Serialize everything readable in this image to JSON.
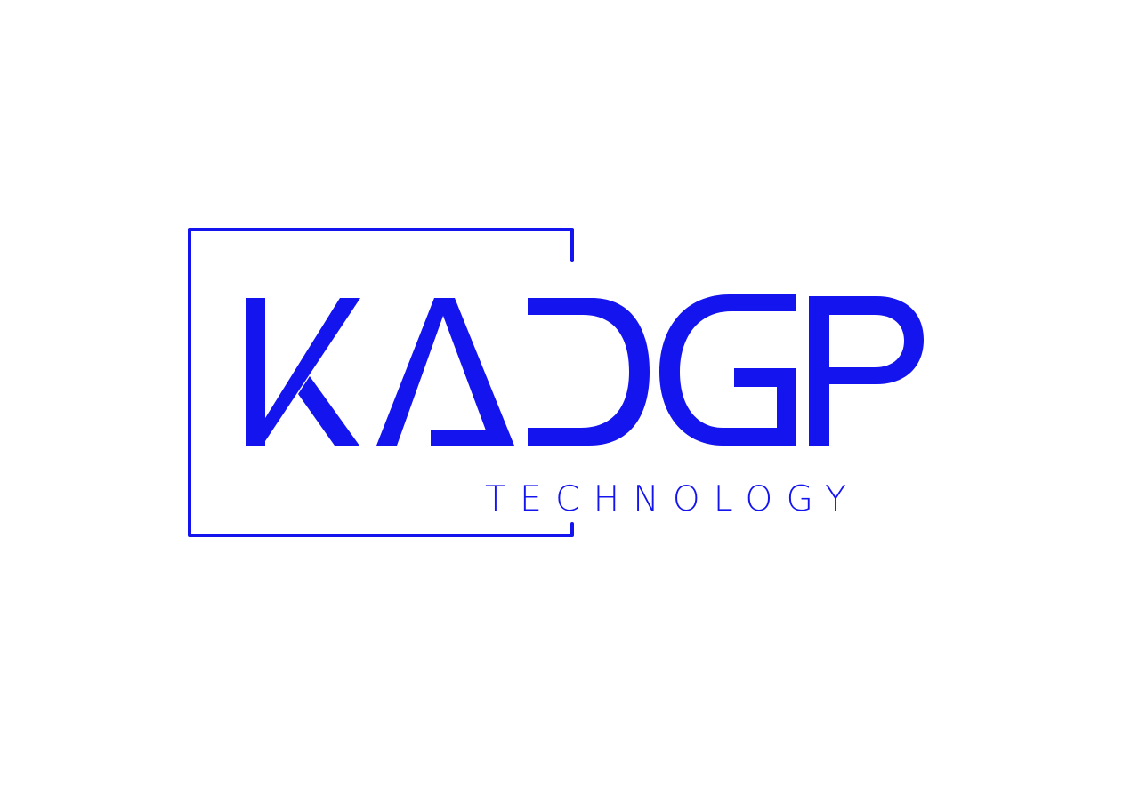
{
  "logo": {
    "wordmark": "KADGP",
    "tagline": "TECHNOLOGY",
    "brand_color": "#1414ee",
    "background_color": "#ffffff"
  }
}
